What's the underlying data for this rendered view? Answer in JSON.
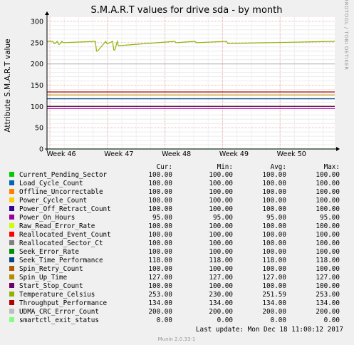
{
  "chart_data": {
    "type": "line",
    "title": "S.M.A.R.T values for drive sda - by month",
    "ylabel": "Attribute S.M.A.R.T value",
    "xlabel": "",
    "ylim": [
      0,
      310
    ],
    "yticks": [
      0,
      50,
      100,
      150,
      200,
      250,
      300
    ],
    "xticks": [
      "Week 46",
      "Week 47",
      "Week 48",
      "Week 49",
      "Week 50"
    ],
    "grid": true,
    "side_label": "RRDTOOL / TOBI OETIKER",
    "legend_headers": {
      "cur": "Cur:",
      "min": "Min:",
      "avg": "Avg:",
      "max": "Max:"
    },
    "series": [
      {
        "name": "Current_Pending_Sector",
        "color": "#00cc00",
        "cur": "100.00",
        "min": "100.00",
        "avg": "100.00",
        "max": "100.00",
        "level": 100
      },
      {
        "name": "Load_Cycle_Count",
        "color": "#0066b3",
        "cur": "100.00",
        "min": "100.00",
        "avg": "100.00",
        "max": "100.00",
        "level": 100
      },
      {
        "name": "Offline_Uncorrectable",
        "color": "#ff8000",
        "cur": "100.00",
        "min": "100.00",
        "avg": "100.00",
        "max": "100.00",
        "level": 100
      },
      {
        "name": "Power_Cycle_Count",
        "color": "#ffcc00",
        "cur": "100.00",
        "min": "100.00",
        "avg": "100.00",
        "max": "100.00",
        "level": 100
      },
      {
        "name": "Power_Off_Retract_Count",
        "color": "#330099",
        "cur": "100.00",
        "min": "100.00",
        "avg": "100.00",
        "max": "100.00",
        "level": 100
      },
      {
        "name": "Power_On_Hours",
        "color": "#990099",
        "cur": "95.00",
        "min": "95.00",
        "avg": "95.00",
        "max": "95.00",
        "level": 95
      },
      {
        "name": "Raw_Read_Error_Rate",
        "color": "#ccff00",
        "cur": "100.00",
        "min": "100.00",
        "avg": "100.00",
        "max": "100.00",
        "level": 100
      },
      {
        "name": "Reallocated_Event_Count",
        "color": "#ff0000",
        "cur": "100.00",
        "min": "100.00",
        "avg": "100.00",
        "max": "100.00",
        "level": 100
      },
      {
        "name": "Reallocated_Sector_Ct",
        "color": "#808080",
        "cur": "100.00",
        "min": "100.00",
        "avg": "100.00",
        "max": "100.00",
        "level": 100
      },
      {
        "name": "Seek_Error_Rate",
        "color": "#008f00",
        "cur": "100.00",
        "min": "100.00",
        "avg": "100.00",
        "max": "100.00",
        "level": 100
      },
      {
        "name": "Seek_Time_Performance",
        "color": "#00487d",
        "cur": "118.00",
        "min": "118.00",
        "avg": "118.00",
        "max": "118.00",
        "level": 118
      },
      {
        "name": "Spin_Retry_Count",
        "color": "#b35a00",
        "cur": "100.00",
        "min": "100.00",
        "avg": "100.00",
        "max": "100.00",
        "level": 100
      },
      {
        "name": "Spin_Up_Time",
        "color": "#b38f00",
        "cur": "127.00",
        "min": "127.00",
        "avg": "127.00",
        "max": "127.00",
        "level": 127
      },
      {
        "name": "Start_Stop_Count",
        "color": "#6b006b",
        "cur": "100.00",
        "min": "100.00",
        "avg": "100.00",
        "max": "100.00",
        "level": 100
      },
      {
        "name": "Temperature_Celsius",
        "color": "#8fb300",
        "cur": "253.00",
        "min": "230.00",
        "avg": "251.59",
        "max": "253.00",
        "level": 253
      },
      {
        "name": "Throughput_Performance",
        "color": "#b30000",
        "cur": "134.00",
        "min": "134.00",
        "avg": "134.00",
        "max": "134.00",
        "level": 134
      },
      {
        "name": "UDMA_CRC_Error_Count",
        "color": "#bebebe",
        "cur": "200.00",
        "min": "200.00",
        "avg": "200.00",
        "max": "200.00",
        "level": 200
      },
      {
        "name": "smartctl_exit_status",
        "color": "#80ff80",
        "cur": "0.00",
        "min": "0.00",
        "avg": "0.00",
        "max": "0.00",
        "level": 0
      }
    ],
    "temperature_dips": [
      {
        "week": 46.08,
        "value": 248
      },
      {
        "week": 46.16,
        "value": 246
      },
      {
        "week": 46.24,
        "value": 250
      },
      {
        "week": 46.82,
        "value": 230
      },
      {
        "week": 47.0,
        "value": 248
      },
      {
        "week": 47.12,
        "value": 233
      },
      {
        "week": 47.2,
        "value": 243
      },
      {
        "week": 48.2,
        "value": 250
      },
      {
        "week": 48.55,
        "value": 250
      },
      {
        "week": 49.1,
        "value": 248
      }
    ],
    "last_update": "Last update:  Mon Dec 18 11:00:12 2017",
    "footer": "Munin 2.0.33-1"
  }
}
